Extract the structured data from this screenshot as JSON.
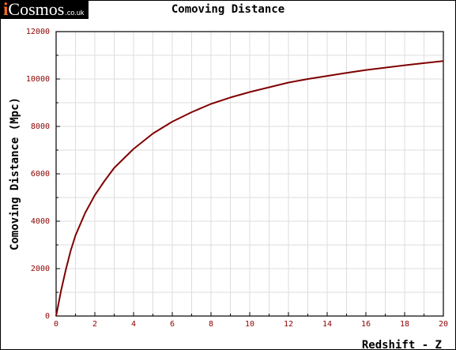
{
  "logo": {
    "i": "i",
    "main": "Cosmos",
    "tld": ".co.uk"
  },
  "chart_data": {
    "type": "line",
    "title": "Comoving Distance",
    "xlabel": "Redshift - Z",
    "ylabel": "Comoving Distance (Mpc)",
    "xlim": [
      0,
      20
    ],
    "ylim": [
      0,
      12000
    ],
    "xticks": [
      "0",
      "2",
      "4",
      "6",
      "8",
      "10",
      "12",
      "14",
      "16",
      "18",
      "20"
    ],
    "yticks": [
      "0",
      "2000",
      "4000",
      "6000",
      "8000",
      "10000",
      "12000"
    ],
    "grid": true,
    "series": [
      {
        "color": "#800000",
        "x": [
          0,
          0.25,
          0.5,
          0.75,
          1,
          1.5,
          2,
          2.5,
          3,
          4,
          5,
          6,
          7,
          8,
          9,
          10,
          11,
          12,
          13,
          14,
          15,
          16,
          17,
          18,
          19,
          20
        ],
        "y": [
          0,
          1050,
          1950,
          2750,
          3400,
          4350,
          5100,
          5700,
          6250,
          7050,
          7700,
          8200,
          8600,
          8950,
          9220,
          9450,
          9650,
          9850,
          10000,
          10130,
          10260,
          10380,
          10480,
          10580,
          10670,
          10760
        ]
      }
    ]
  }
}
